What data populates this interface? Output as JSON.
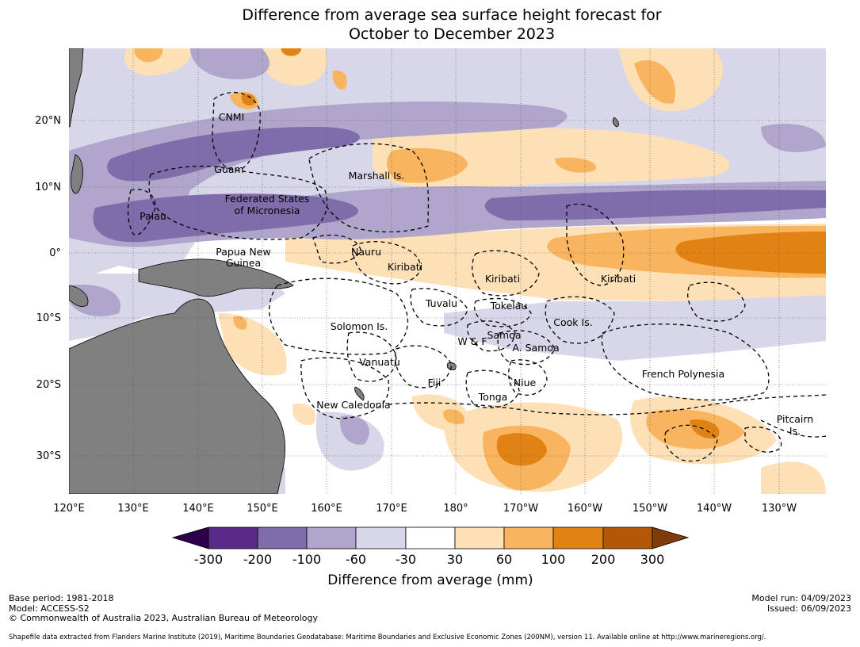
{
  "title": {
    "line1": "Difference from average sea surface height forecast for",
    "line2": "October to December 2023"
  },
  "map": {
    "longitude_labels": [
      "120°E",
      "130°E",
      "140°E",
      "150°E",
      "160°E",
      "170°E",
      "180°",
      "170°W",
      "160°W",
      "150°W",
      "140°W",
      "130°W"
    ],
    "latitude_labels": [
      "20°N",
      "10°N",
      "0°",
      "10°S",
      "20°S",
      "30°S"
    ],
    "regions": [
      {
        "name": "cnmi",
        "label": "CNMI"
      },
      {
        "name": "guam",
        "label": "Guam"
      },
      {
        "name": "marshall",
        "label": "Marshall Is."
      },
      {
        "name": "fsm1",
        "label": "Federated States"
      },
      {
        "name": "fsm2",
        "label": "of Micronesia"
      },
      {
        "name": "palau",
        "label": "Palau"
      },
      {
        "name": "png1",
        "label": "Papua New"
      },
      {
        "name": "png2",
        "label": "Guinea"
      },
      {
        "name": "nauru",
        "label": "Nauru"
      },
      {
        "name": "kiribati1",
        "label": "Kiribati"
      },
      {
        "name": "kiribati2",
        "label": "Kiribati"
      },
      {
        "name": "kiribati3",
        "label": "Kiribati"
      },
      {
        "name": "tuvalu",
        "label": "Tuvalu"
      },
      {
        "name": "tokelau",
        "label": "Tokelau"
      },
      {
        "name": "solomon",
        "label": "Solomon Is."
      },
      {
        "name": "cook",
        "label": "Cook Is."
      },
      {
        "name": "samoa",
        "label": "Samoa"
      },
      {
        "name": "wf",
        "label": "W & F"
      },
      {
        "name": "asamoa",
        "label": "A. Samoa"
      },
      {
        "name": "vanuatu",
        "label": "Vanuatu"
      },
      {
        "name": "frenchpoly",
        "label": "French Polynesia"
      },
      {
        "name": "fiji",
        "label": "Fiji"
      },
      {
        "name": "niue",
        "label": "Niue"
      },
      {
        "name": "tonga",
        "label": "Tonga"
      },
      {
        "name": "newcal",
        "label": "New Caledonia"
      },
      {
        "name": "pitcairn1",
        "label": "Pitcairn"
      },
      {
        "name": "pitcairn2",
        "label": "Is."
      }
    ]
  },
  "colorbar": {
    "title": "Difference from average (mm)",
    "tick_labels": [
      "-300",
      "-200",
      "-100",
      "-60",
      "-30",
      "30",
      "60",
      "100",
      "200",
      "300"
    ],
    "colors": [
      "#5a2a88",
      "#7f6cab",
      "#b0a6cc",
      "#d8d6e9",
      "#ffffff",
      "#fde0b5",
      "#f9b460",
      "#e08214",
      "#b35806"
    ],
    "extend_low_color": "#2d004b",
    "extend_high_color": "#7f3b08"
  },
  "colors": {
    "land": "#808080",
    "strong_neg": "#7f6cab",
    "mid_neg": "#b0a6cc",
    "weak_neg": "#d8d6e9",
    "weak_pos": "#fde0b5",
    "mid_pos": "#f9b460",
    "strong_pos": "#e08214"
  },
  "footer": {
    "base_period": "Base period: 1981-2018",
    "model": "Model: ACCESS-S2",
    "copyright": "© Commonwealth of Australia 2023, Australian Bureau of Meteorology",
    "model_run": "Model run: 04/09/2023",
    "issued": "Issued: 06/09/2023",
    "source": "Shapefile data extracted from Flanders Marine Institute (2019), Maritime Boundaries Geodatabase: Maritime Boundaries and Exclusive Economic Zones (200NM), version 11. Available online at http://www.marineregions.org/."
  }
}
